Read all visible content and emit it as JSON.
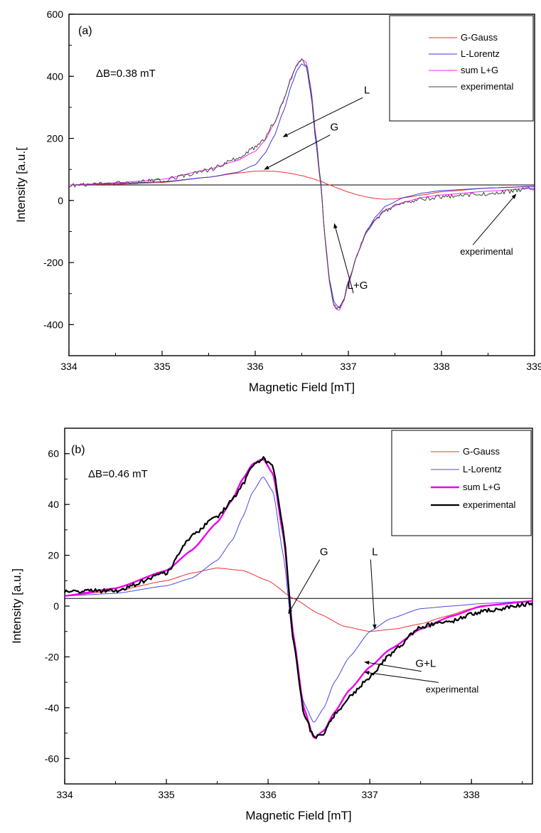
{
  "chart_data": [
    {
      "type": "line",
      "panel_label": "(a)",
      "xlabel": "Magnetic Field [mT]",
      "ylabel": "Intensity [a.u.[",
      "xlim": [
        334,
        339
      ],
      "ylim": [
        -500,
        600
      ],
      "xticks": [
        334,
        335,
        336,
        337,
        338,
        339
      ],
      "yticks": [
        -400,
        -200,
        0,
        200,
        400,
        600
      ],
      "baseline_y": 50,
      "grid": false,
      "legend_position": "top-right",
      "inset_text": "ΔB=0.38 mT",
      "series": [
        {
          "name": "G-Gauss",
          "color": "#ee3030",
          "width": 1,
          "x": [
            334,
            334.5,
            335,
            335.5,
            335.8,
            336,
            336.1,
            336.2,
            336.3,
            336.4,
            336.5,
            336.6,
            336.7,
            336.8,
            336.9,
            337,
            337.1,
            337.2,
            337.3,
            337.4,
            337.5,
            337.6,
            337.8,
            338,
            338.5,
            339
          ],
          "y": [
            50,
            52,
            58,
            75,
            88,
            94,
            95,
            94,
            91,
            86,
            80,
            72,
            62,
            50,
            38,
            27,
            18,
            11,
            6,
            4,
            5,
            9,
            18,
            28,
            40,
            46
          ]
        },
        {
          "name": "L-Lorentz",
          "color": "#3a3adc",
          "width": 1,
          "x": [
            334,
            334.5,
            335,
            335.5,
            335.8,
            336,
            336.1,
            336.2,
            336.3,
            336.4,
            336.45,
            336.5,
            336.55,
            336.6,
            336.65,
            336.7,
            336.75,
            336.8,
            336.85,
            336.9,
            336.95,
            337,
            337.1,
            337.2,
            337.3,
            337.4,
            337.6,
            337.8,
            338,
            338.5,
            339
          ],
          "y": [
            50,
            55,
            60,
            75,
            90,
            115,
            150,
            205,
            285,
            380,
            420,
            440,
            430,
            340,
            190,
            60,
            -120,
            -260,
            -330,
            -345,
            -320,
            -270,
            -170,
            -95,
            -50,
            -18,
            10,
            24,
            32,
            40,
            45
          ]
        },
        {
          "name": "sum L+G",
          "color": "#ff22ff",
          "width": 1,
          "x": [
            334,
            334.5,
            335,
            335.5,
            335.8,
            336,
            336.1,
            336.2,
            336.3,
            336.4,
            336.45,
            336.5,
            336.55,
            336.6,
            336.65,
            336.7,
            336.75,
            336.8,
            336.85,
            336.9,
            336.95,
            337,
            337.1,
            337.2,
            337.3,
            337.4,
            337.6,
            337.8,
            338,
            338.5,
            339
          ],
          "y": [
            50,
            57,
            68,
            100,
            128,
            158,
            192,
            245,
            320,
            405,
            440,
            455,
            445,
            360,
            210,
            70,
            -120,
            -270,
            -345,
            -355,
            -325,
            -265,
            -170,
            -100,
            -60,
            -30,
            -5,
            10,
            18,
            30,
            40
          ]
        },
        {
          "name": "experimental",
          "color": "#444444",
          "width": 1,
          "noise": true,
          "x": [
            334,
            334.5,
            335,
            335.5,
            335.8,
            336,
            336.1,
            336.2,
            336.3,
            336.4,
            336.45,
            336.5,
            336.55,
            336.6,
            336.65,
            336.7,
            336.75,
            336.8,
            336.85,
            336.9,
            336.95,
            337,
            337.1,
            337.2,
            337.3,
            337.4,
            337.6,
            337.8,
            338,
            338.5,
            339
          ],
          "y": [
            48,
            55,
            65,
            98,
            135,
            170,
            200,
            250,
            320,
            402,
            440,
            452,
            440,
            355,
            205,
            68,
            -125,
            -272,
            -340,
            -350,
            -320,
            -262,
            -168,
            -100,
            -62,
            -32,
            -8,
            5,
            12,
            22,
            38
          ]
        }
      ],
      "annotations": [
        {
          "text": "L",
          "x": 337.2,
          "y": 345,
          "arrow_to": [
            336.3,
            205
          ]
        },
        {
          "text": "G",
          "x": 336.85,
          "y": 225,
          "arrow_to": [
            336.1,
            100
          ]
        },
        {
          "text": "L+G",
          "x": 337.1,
          "y": -285,
          "arrow_to": [
            336.85,
            -75
          ]
        },
        {
          "text": "experimental",
          "x": 338.2,
          "y": -175,
          "arrow_to": [
            338.8,
            20
          ]
        }
      ]
    },
    {
      "type": "line",
      "panel_label": "(b)",
      "xlabel": "Magnetic Field [mT]",
      "ylabel": "Intensity [a.u.]",
      "xlim": [
        334,
        338.6
      ],
      "ylim": [
        -70,
        70
      ],
      "xticks": [
        334,
        335,
        336,
        337,
        338
      ],
      "yticks": [
        -60,
        -40,
        -20,
        0,
        20,
        40,
        60
      ],
      "baseline_y": 3,
      "grid": false,
      "legend_position": "top-right",
      "inset_text": "ΔB=0.46 mT",
      "series": [
        {
          "name": "G-Gauss",
          "color": "#ee3030",
          "width": 1,
          "x": [
            334,
            334.5,
            335,
            335.25,
            335.5,
            335.75,
            336,
            336.25,
            336.5,
            336.75,
            337,
            337.25,
            337.5,
            337.75,
            338,
            338.3,
            338.6
          ],
          "y": [
            4,
            6,
            10,
            13,
            15,
            14,
            10,
            3,
            -3,
            -8,
            -10,
            -9,
            -7,
            -4,
            -1,
            1,
            2
          ]
        },
        {
          "name": "L-Lorentz",
          "color": "#4a4ae8",
          "width": 1,
          "x": [
            334,
            334.5,
            335,
            335.25,
            335.5,
            335.65,
            335.75,
            335.85,
            335.95,
            336.05,
            336.15,
            336.25,
            336.35,
            336.45,
            336.55,
            336.65,
            336.8,
            337,
            337.2,
            337.5,
            337.8,
            338.1,
            338.6
          ],
          "y": [
            4,
            5,
            8,
            11,
            18,
            26,
            35,
            45,
            51,
            45,
            20,
            -15,
            -38,
            -46,
            -40,
            -30,
            -20,
            -10,
            -5,
            -1,
            0,
            1,
            2
          ]
        },
        {
          "name": "sum L+G",
          "color": "#ee00ee",
          "width": 2.4,
          "x": [
            334,
            334.5,
            335,
            335.25,
            335.5,
            335.65,
            335.75,
            335.85,
            335.95,
            336.05,
            336.15,
            336.25,
            336.35,
            336.45,
            336.55,
            336.65,
            336.8,
            337,
            337.2,
            337.5,
            337.8,
            338.1,
            338.6
          ],
          "y": [
            4,
            7,
            14,
            22,
            33,
            42,
            50,
            56,
            58,
            52,
            28,
            -12,
            -40,
            -52,
            -49,
            -42,
            -33,
            -24,
            -17,
            -9,
            -4,
            0,
            2
          ]
        },
        {
          "name": "experimental",
          "color": "#000000",
          "width": 2.2,
          "noise": true,
          "x": [
            334,
            334.5,
            335,
            335.25,
            335.5,
            335.65,
            335.75,
            335.85,
            335.95,
            336.05,
            336.15,
            336.25,
            336.35,
            336.45,
            336.55,
            336.65,
            336.8,
            337,
            337.2,
            337.5,
            337.8,
            338.1,
            338.6
          ],
          "y": [
            6,
            6,
            13,
            28,
            35,
            42,
            48,
            55,
            58,
            55,
            30,
            -14,
            -42,
            -52,
            -50,
            -43,
            -36,
            -28,
            -19,
            -8,
            -6,
            -2,
            1
          ]
        }
      ],
      "annotations": [
        {
          "text": "G",
          "x": 336.55,
          "y": 20,
          "arrow_to": [
            336.2,
            -3
          ]
        },
        {
          "text": "L",
          "x": 337.05,
          "y": 20,
          "arrow_to": [
            337.05,
            -9
          ]
        },
        {
          "text": "G+L",
          "x": 337.55,
          "y": -24,
          "arrow_to": [
            336.95,
            -22
          ]
        },
        {
          "text": "experimental",
          "x": 337.55,
          "y": -34,
          "arrow_to": [
            336.95,
            -26
          ]
        }
      ]
    }
  ]
}
